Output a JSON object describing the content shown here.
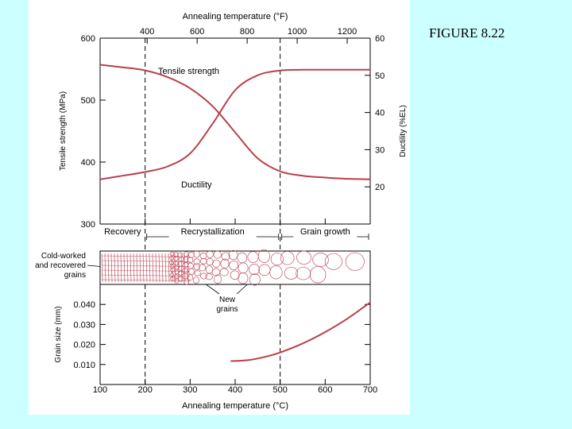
{
  "caption": "FIGURE 8.22",
  "colors": {
    "background": "#ccffff",
    "panel": "#ffffff",
    "curve": "#b8404a",
    "axis": "#000000",
    "grain_line": "#c05060"
  },
  "chart_data": [
    {
      "type": "line",
      "x_label_bottom": "Annealing temperature (°C)",
      "x_label_top": "Annealing temperature (°F)",
      "x_ticks_top": [
        400,
        600,
        800,
        1000,
        1200
      ],
      "ylabel_left": "Tensile strength (MPa)",
      "ylabel_right": "Ductility (%EL)",
      "xlim": [
        100,
        700
      ],
      "ylim_left": [
        300,
        600
      ],
      "ylim_right": [
        10,
        60
      ],
      "y_ticks_left": [
        300,
        400,
        500,
        600
      ],
      "y_ticks_right": [
        20,
        30,
        40,
        50,
        60
      ],
      "regions": [
        {
          "label": "Recovery",
          "x_range": [
            100,
            200
          ]
        },
        {
          "label": "Recrystallization",
          "x_range": [
            200,
            500
          ]
        },
        {
          "label": "Grain growth",
          "x_range": [
            500,
            700
          ]
        }
      ],
      "dashed_lines_x": [
        200,
        500
      ],
      "series": [
        {
          "name": "Tensile strength",
          "axis": "left",
          "x": [
            100,
            150,
            200,
            250,
            300,
            350,
            400,
            450,
            500,
            550,
            600,
            650,
            700
          ],
          "y": [
            557,
            553,
            548,
            537,
            519,
            490,
            448,
            406,
            385,
            378,
            375,
            373,
            372
          ]
        },
        {
          "name": "Ductility",
          "axis": "right",
          "x": [
            100,
            150,
            200,
            250,
            300,
            350,
            400,
            450,
            500,
            550,
            600,
            650,
            700
          ],
          "y": [
            22,
            23,
            24,
            25.5,
            29,
            37,
            46,
            50,
            51.3,
            51.5,
            51.5,
            51.5,
            51.5
          ]
        }
      ]
    },
    {
      "type": "line",
      "xlabel": "Annealing temperature (°C)",
      "ylabel": "Grain size (mm)",
      "xlim": [
        100,
        700
      ],
      "ylim": [
        0,
        0.05
      ],
      "x_ticks": [
        100,
        200,
        300,
        400,
        500,
        600,
        700
      ],
      "y_ticks": [
        "0.010",
        "0.020",
        "0.030",
        "0.040"
      ],
      "dashed_lines_x": [
        200,
        500
      ],
      "series": [
        {
          "x": [
            390,
            430,
            470,
            500,
            550,
            600,
            650,
            700
          ],
          "y": [
            0.0117,
            0.0122,
            0.014,
            0.016,
            0.0205,
            0.0262,
            0.033,
            0.041
          ]
        }
      ]
    }
  ],
  "micrograph": {
    "label_cold_worked": [
      "Cold-worked",
      "and recovered",
      "grains"
    ],
    "label_new_grains": [
      "New",
      "grains"
    ]
  }
}
